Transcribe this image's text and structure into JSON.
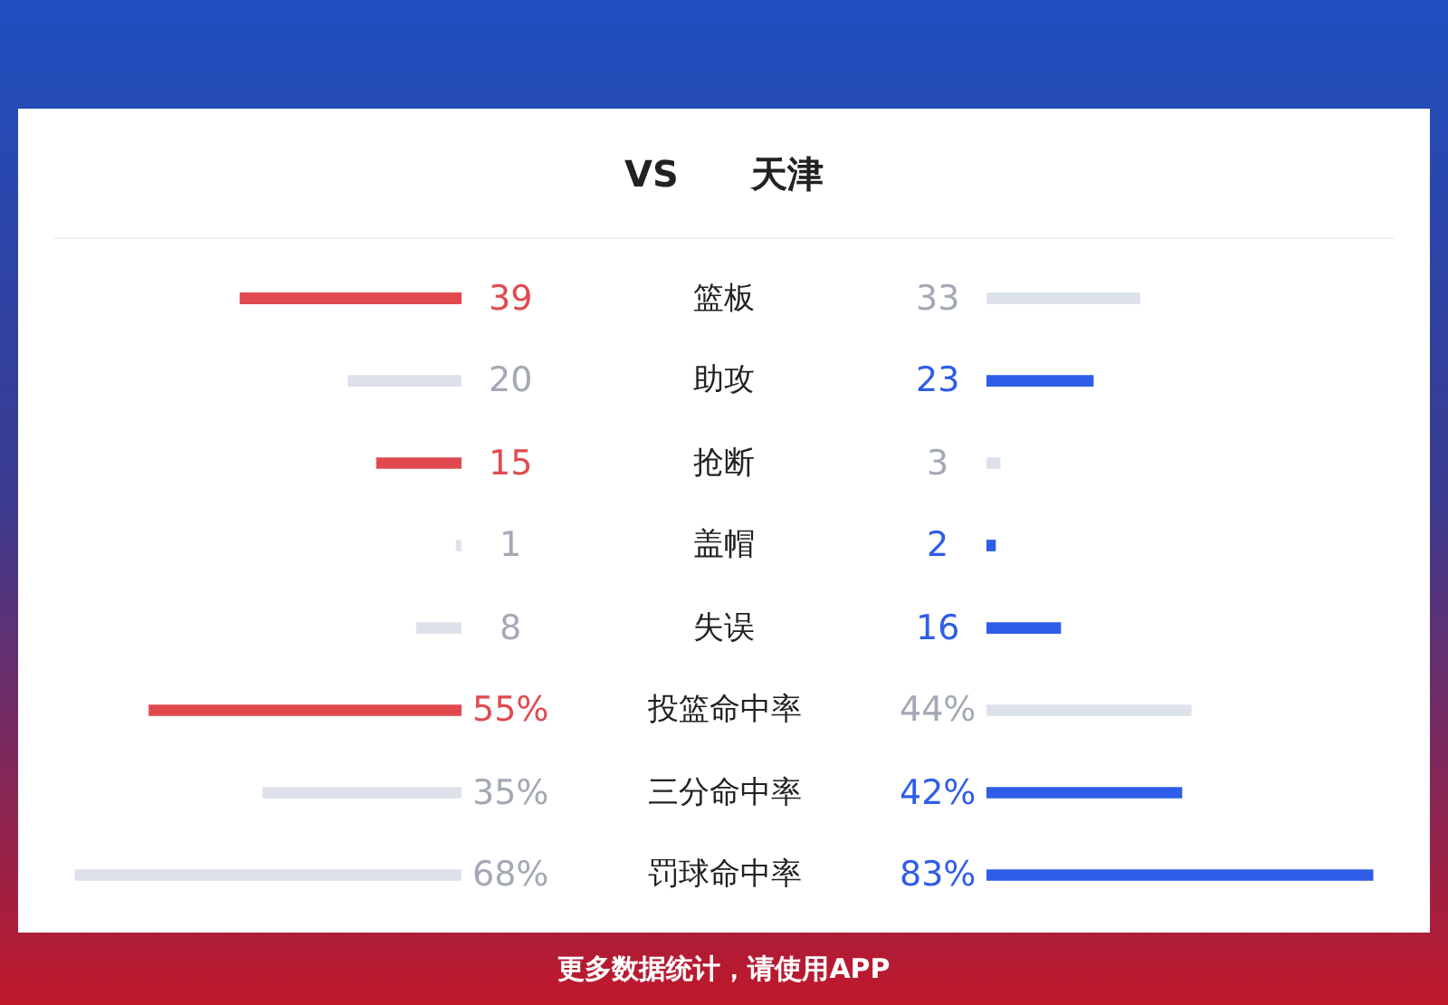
{
  "chart_data": [
    {
      "type": "bar",
      "orientation": "horizontal",
      "annotations": [
        "VS",
        "更多数据统计，请使用APP"
      ],
      "categories": [
        "篮板",
        "助攻",
        "抢断",
        "盖帽",
        "失误",
        "投篮命中率",
        "三分命中率",
        "罚球命中率"
      ],
      "series": [
        {
          "values": [
            39,
            20,
            15,
            1,
            8,
            55,
            35,
            68
          ],
          "value_labels": [
            "39",
            "20",
            "15",
            "1",
            "8",
            "55%",
            "35%",
            "68%"
          ],
          "colors": [
            "#e04a4f",
            "#dde2ea",
            "#e04a4f",
            "#dde2ea",
            "#dde2ea",
            "#e04a4f",
            "#dde2ea",
            "#dde2ea"
          ]
        }
      ]
    },
    {
      "type": "bar",
      "orientation": "horizontal",
      "categories": [
        null,
        null,
        null,
        null,
        null,
        null,
        null,
        null
      ],
      "series": [
        {
          "name": "天津",
          "values": [
            33,
            23,
            3,
            2,
            16,
            44,
            42,
            83
          ],
          "value_labels": [
            "33",
            "23",
            "3",
            "2",
            "16",
            "44%",
            "42%",
            "83%"
          ],
          "colors": [
            "#dde2ea",
            "#2f5de8",
            "#dde2ea",
            "#2f5de8",
            "#2f5de8",
            "#dde2ea",
            "#2f5de8",
            "#2f5de8"
          ]
        }
      ]
    }
  ]
}
